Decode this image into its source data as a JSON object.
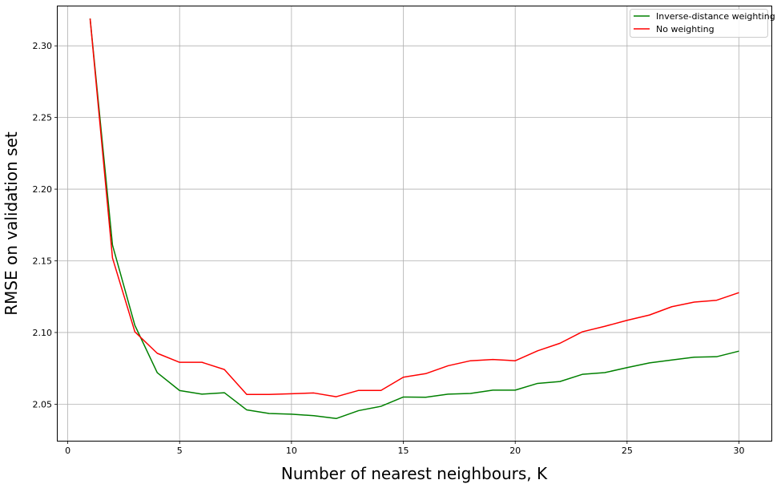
{
  "chart_data": {
    "type": "line",
    "xlabel": "Number of nearest neighbours, K",
    "ylabel": "RMSE on validation set",
    "xlim": [
      -0.45,
      31.45
    ],
    "ylim": [
      2.0245,
      2.3275
    ],
    "xticks": [
      0,
      5,
      10,
      15,
      20,
      25,
      30
    ],
    "xtick_labels": [
      "0",
      "5",
      "10",
      "15",
      "20",
      "25",
      "30"
    ],
    "yticks": [
      2.05,
      2.1,
      2.15,
      2.2,
      2.25,
      2.3
    ],
    "ytick_labels": [
      "2.05",
      "2.10",
      "2.15",
      "2.20",
      "2.25",
      "2.30"
    ],
    "grid": true,
    "legend_position": "top-right",
    "x": [
      1,
      2,
      3,
      4,
      5,
      6,
      7,
      8,
      9,
      10,
      11,
      12,
      13,
      14,
      15,
      16,
      17,
      18,
      19,
      20,
      21,
      22,
      23,
      24,
      25,
      26,
      27,
      28,
      29,
      30
    ],
    "series": [
      {
        "name": "Inverse-distance weighting",
        "color": "#008000",
        "values": [
          2.319,
          2.161,
          2.105,
          2.072,
          2.0595,
          2.057,
          2.058,
          2.046,
          2.0435,
          2.043,
          2.042,
          2.04,
          2.0455,
          2.0485,
          2.055,
          2.0548,
          2.057,
          2.0575,
          2.0598,
          2.0598,
          2.0645,
          2.0658,
          2.0708,
          2.072,
          2.0755,
          2.0788,
          2.0808,
          2.0828,
          2.0831,
          2.087
        ]
      },
      {
        "name": "No weighting",
        "color": "#ff0000",
        "values": [
          2.319,
          2.152,
          2.1005,
          2.0855,
          2.0792,
          2.0792,
          2.0742,
          2.0568,
          2.0568,
          2.0573,
          2.0578,
          2.0552,
          2.0596,
          2.0596,
          2.0688,
          2.0713,
          2.0768,
          2.0803,
          2.0812,
          2.0803,
          2.0872,
          2.0925,
          2.1005,
          2.1043,
          2.1085,
          2.1122,
          2.118,
          2.1212,
          2.1225,
          2.1278
        ]
      }
    ]
  }
}
